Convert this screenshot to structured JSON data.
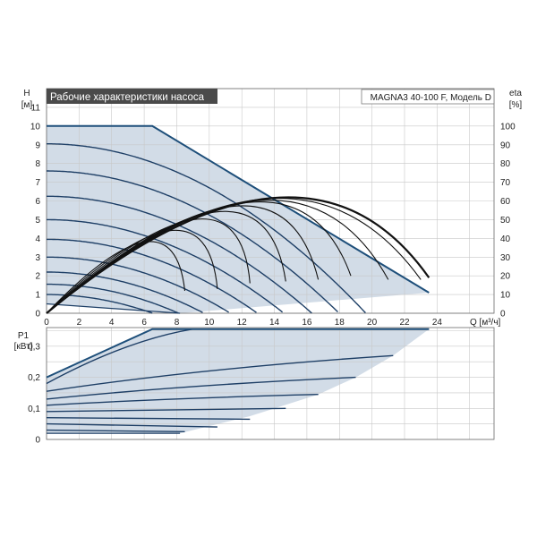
{
  "chart_data": [
    {
      "type": "line",
      "title": "Рабочие характеристики насоса",
      "model_label": "MAGNA3 40-100 F, Модель D",
      "left_axis": {
        "name": "H",
        "unit": "[м]"
      },
      "right_axis": {
        "name": "eta",
        "unit": "[%]"
      },
      "x_axis_label": "Q [м³/ч]",
      "xlim": [
        0,
        27.5
      ],
      "ylim": [
        0,
        12
      ],
      "x_ticks": [
        0,
        2,
        4,
        6,
        8,
        10,
        12,
        14,
        16,
        18,
        20,
        22,
        24
      ],
      "y_ticks": [
        0,
        1,
        2,
        3,
        4,
        5,
        6,
        7,
        8,
        9,
        10,
        11
      ],
      "eta_ticks": [
        0,
        10,
        20,
        30,
        40,
        50,
        60,
        70,
        80,
        90,
        100
      ],
      "grid": true,
      "max_curve": {
        "x": [
          0,
          6.5,
          23.5
        ],
        "y": [
          10,
          10,
          1.1
        ]
      },
      "min_curve": {
        "x": [
          0,
          8.2
        ],
        "y": [
          0.5,
          0
        ]
      },
      "head_curves_H0": [
        9.05,
        7.6,
        6.25,
        5.0,
        3.95,
        3.0,
        2.2,
        1.55,
        1.0
      ],
      "eta_curves": [
        {
          "x": [
            0,
            6,
            8.5
          ],
          "y": [
            0,
            38,
            12
          ]
        },
        {
          "x": [
            0,
            7.5,
            10.5
          ],
          "y": [
            0,
            44,
            13
          ]
        },
        {
          "x": [
            0,
            9,
            12.5
          ],
          "y": [
            0,
            50,
            16
          ]
        },
        {
          "x": [
            0,
            10.3,
            14.7
          ],
          "y": [
            0,
            54,
            17
          ]
        },
        {
          "x": [
            0,
            11.3,
            16.7
          ],
          "y": [
            0,
            57,
            18
          ]
        },
        {
          "x": [
            0,
            12.2,
            18.7
          ],
          "y": [
            0,
            59,
            20
          ]
        },
        {
          "x": [
            0,
            12.8,
            21
          ],
          "y": [
            0,
            60,
            18
          ]
        },
        {
          "x": [
            0,
            13.3,
            23
          ],
          "y": [
            0,
            61,
            18
          ]
        },
        {
          "x": [
            0,
            13.8,
            23.5
          ],
          "y": [
            0,
            61.5,
            19
          ],
          "bold": true
        }
      ]
    },
    {
      "type": "area",
      "left_axis": {
        "name": "P1",
        "unit": "[кВт]"
      },
      "xlim": [
        0,
        27.5
      ],
      "ylim": [
        0,
        0.36
      ],
      "y_ticks": [
        0,
        0.1,
        0.2,
        0.3
      ],
      "y_tick_labels": [
        "0",
        "0,1",
        "0,2",
        "0,3"
      ],
      "grid": true,
      "max_power": {
        "x": [
          0,
          6.5,
          23.5
        ],
        "y": [
          0.2,
          0.355,
          0.355
        ]
      },
      "power_curves": [
        {
          "x": [
            0,
            9,
            23.5
          ],
          "y": [
            0.18,
            0.355,
            0.355
          ]
        },
        {
          "x": [
            0,
            21.3
          ],
          "y": [
            0.155,
            0.27
          ]
        },
        {
          "x": [
            0,
            19
          ],
          "y": [
            0.13,
            0.2
          ]
        },
        {
          "x": [
            0,
            16.7
          ],
          "y": [
            0.11,
            0.145
          ]
        },
        {
          "x": [
            0,
            14.7
          ],
          "y": [
            0.09,
            0.1
          ]
        },
        {
          "x": [
            0,
            12.5
          ],
          "y": [
            0.07,
            0.065
          ]
        },
        {
          "x": [
            0,
            10.5
          ],
          "y": [
            0.05,
            0.04
          ]
        },
        {
          "x": [
            0,
            8.5
          ],
          "y": [
            0.03,
            0.025
          ]
        }
      ],
      "min_power": {
        "x": [
          0,
          8.2
        ],
        "y": [
          0.02,
          0.02
        ]
      }
    }
  ]
}
